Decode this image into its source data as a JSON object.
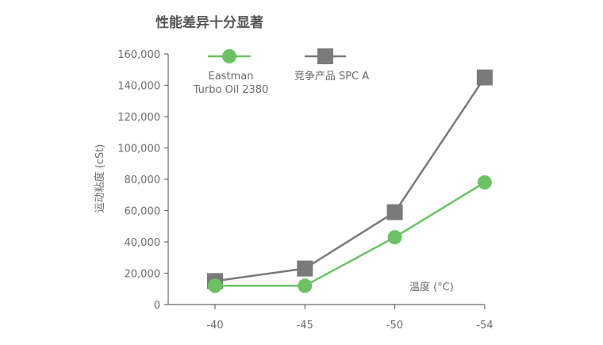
{
  "chart_data": {
    "type": "line",
    "title": "性能差异十分显著",
    "ylabel": "运动粘度 (cSt)",
    "xlabel": "温度 (°C)",
    "categories": [
      "-40",
      "-45",
      "-50",
      "-54"
    ],
    "ylim": [
      0,
      160000
    ],
    "yticks": [
      0,
      20000,
      40000,
      60000,
      80000,
      100000,
      120000,
      140000,
      160000
    ],
    "ytick_labels": [
      "0",
      "20,000",
      "40,000",
      "60,000",
      "80,000",
      "100,000",
      "120,000",
      "140,000",
      "160,000"
    ],
    "grid": false,
    "legend_placement": "top",
    "series": [
      {
        "name_lines": [
          "Eastman",
          "Turbo Oil 2380"
        ],
        "name": "Eastman Turbo Oil 2380",
        "color": "#6cc165",
        "marker": "circle",
        "values": [
          12000,
          12000,
          43000,
          78000
        ]
      },
      {
        "name": "竞争产品 SPC A",
        "color": "#7a7a7a",
        "marker": "square",
        "values": [
          15000,
          23000,
          59000,
          145000
        ]
      }
    ]
  }
}
